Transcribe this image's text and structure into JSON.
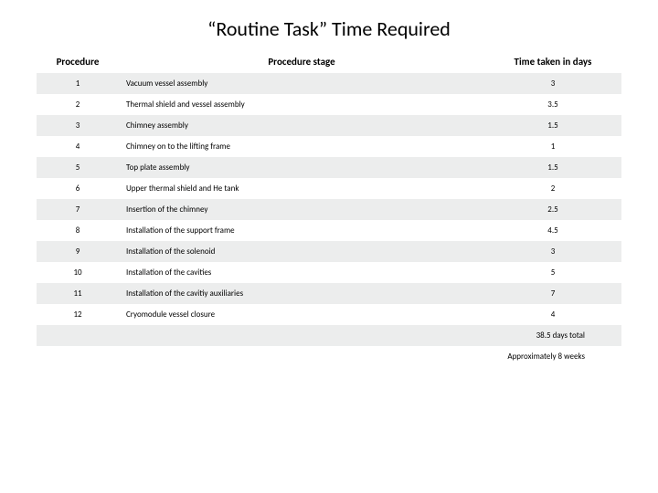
{
  "title": "“Routine Task” Time Required",
  "columns": {
    "procedure": "Procedure",
    "stage": "Procedure stage",
    "time": "Time taken in days"
  },
  "rows": [
    {
      "n": "1",
      "stage": "Vacuum vessel assembly",
      "days": "3"
    },
    {
      "n": "2",
      "stage": "Thermal shield and vessel assembly",
      "days": "3.5"
    },
    {
      "n": "3",
      "stage": "Chimney assembly",
      "days": "1.5"
    },
    {
      "n": "4",
      "stage": "Chimney on to the lifting frame",
      "days": "1"
    },
    {
      "n": "5",
      "stage": "Top plate assembly",
      "days": "1.5"
    },
    {
      "n": "6",
      "stage": "Upper thermal shield and He tank",
      "days": "2"
    },
    {
      "n": "7",
      "stage": "Insertion of the chimney",
      "days": "2.5"
    },
    {
      "n": "8",
      "stage": "Installation of the support frame",
      "days": "4.5"
    },
    {
      "n": "9",
      "stage": "Installation of the solenoid",
      "days": "3"
    },
    {
      "n": "10",
      "stage": "Installation of the cavities",
      "days": "5"
    },
    {
      "n": "11",
      "stage": "Installation of the cavitiy auxiliaries",
      "days": "7"
    },
    {
      "n": "12",
      "stage": "Cryomodule vessel closure",
      "days": "4"
    }
  ],
  "summary": {
    "total": "38.5 days total",
    "approx": "Approximately 8 weeks"
  },
  "style": {
    "row_odd_bg": "#eceded",
    "row_even_bg": "#ffffff",
    "title_fontsize": 22,
    "header_fontsize": 11,
    "cell_fontsize": 9
  }
}
